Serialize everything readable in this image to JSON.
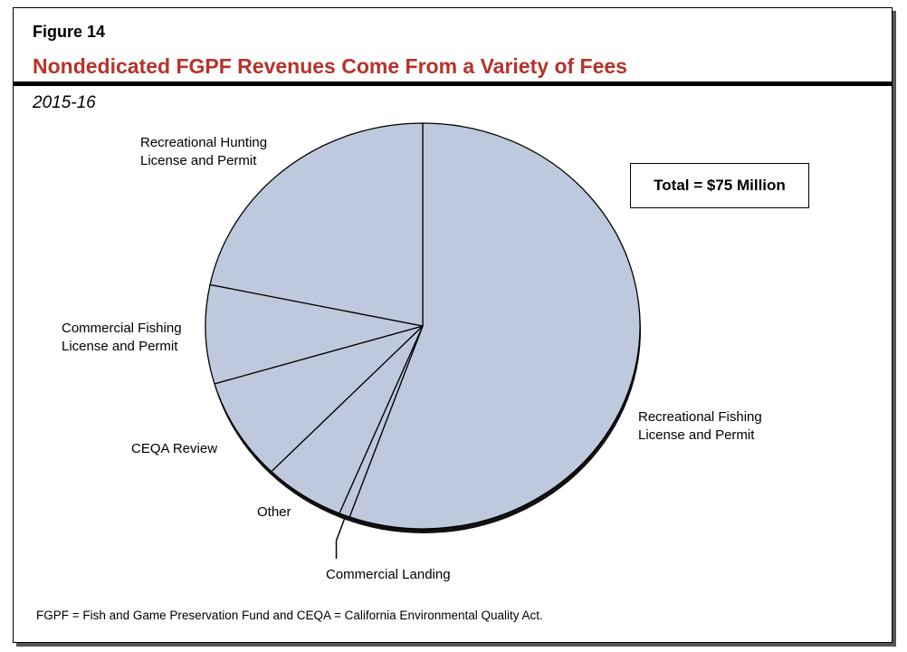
{
  "figure_label": "Figure 14",
  "title": "Nondedicated FGPF Revenues Come From a Variety of Fees",
  "subtitle": "2015-16",
  "total_box": "Total = $75 Million",
  "footnote": "FGPF = Fish and Game Preservation Fund and CEQA = California Environmental Quality Act.",
  "colors": {
    "slice": "#bfc9dd",
    "title": "#b5332a",
    "shadow": "#111111"
  },
  "chart_data": {
    "type": "pie",
    "title": "Nondedicated FGPF Revenues Come From a Variety of Fees",
    "subtitle": "2015-16",
    "units": "$ millions (estimated)",
    "total": 75,
    "start": "12 o'clock, clockwise",
    "slices": [
      {
        "label": "Recreational Fishing License and Permit",
        "label_lines": [
          "Recreational Fishing",
          "License and Permit"
        ],
        "value": 41.6
      },
      {
        "label": "Commercial Landing",
        "label_lines": [
          "Commercial Landing"
        ],
        "value": 0.6
      },
      {
        "label": "Other",
        "label_lines": [
          "Other"
        ],
        "value": 4.5
      },
      {
        "label": "CEQA Review",
        "label_lines": [
          "CEQA Review"
        ],
        "value": 6.1
      },
      {
        "label": "Commercial Fishing License and Permit",
        "label_lines": [
          "Commercial Fishing",
          "License and Permit"
        ],
        "value": 5.9
      },
      {
        "label": "Recreational Hunting License and Permit",
        "label_lines": [
          "Recreational Hunting",
          "License and Permit"
        ],
        "value": 16.3
      }
    ]
  }
}
